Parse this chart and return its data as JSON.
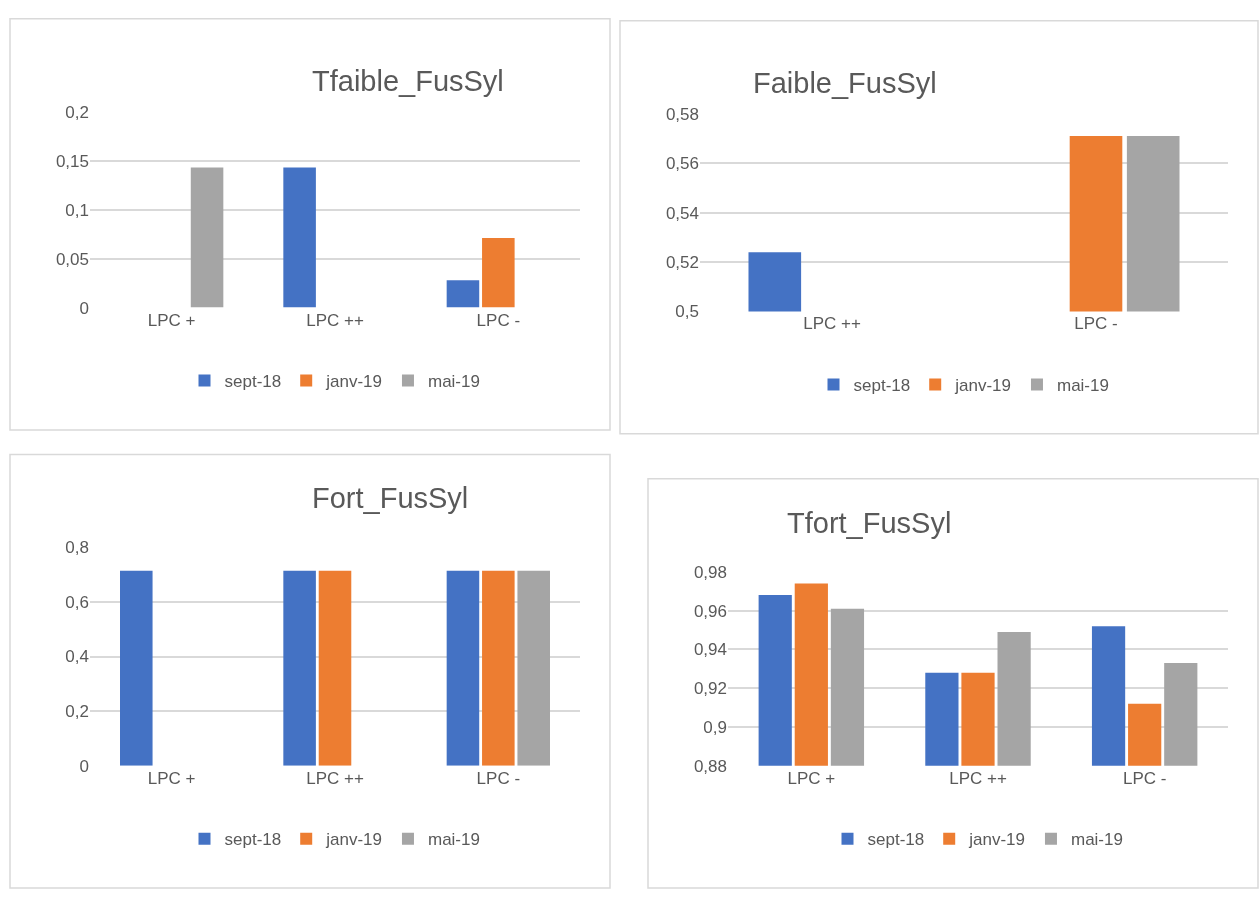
{
  "chart_data": [
    {
      "type": "bar",
      "title": "Tfaible_FusSyl",
      "categories": [
        "LPC +",
        "LPC ++",
        "LPC -"
      ],
      "series": [
        {
          "name": "sept-18",
          "color": "#4472c4",
          "values": [
            null,
            0.143,
            0.028
          ]
        },
        {
          "name": "janv-19",
          "color": "#ed7d31",
          "values": [
            null,
            null,
            0.071
          ]
        },
        {
          "name": "mai-19",
          "color": "#a5a5a5",
          "values": [
            0.143,
            null,
            null
          ]
        }
      ],
      "ylim": [
        0,
        0.2
      ],
      "yticks": [
        0,
        {
          "value": 0.05,
          "label": "0,05"
        },
        {
          "value": 0.1,
          "label": "0,1"
        },
        {
          "value": 0.15,
          "label": "0,15"
        },
        {
          "value": 0.2,
          "label": "0,2"
        }
      ],
      "grid": "y",
      "legend": "bottom"
    },
    {
      "type": "bar",
      "title": "Faible_FusSyl",
      "categories": [
        "LPC ++",
        "LPC -"
      ],
      "series": [
        {
          "name": "sept-18",
          "color": "#4472c4",
          "values": [
            0.524,
            null
          ]
        },
        {
          "name": "janv-19",
          "color": "#ed7d31",
          "values": [
            null,
            0.571
          ]
        },
        {
          "name": "mai-19",
          "color": "#a5a5a5",
          "values": [
            null,
            0.571
          ]
        }
      ],
      "ylim": [
        0.5,
        0.58
      ],
      "yticks": [
        {
          "value": 0.5,
          "label": "0,5"
        },
        {
          "value": 0.52,
          "label": "0,52"
        },
        {
          "value": 0.54,
          "label": "0,54"
        },
        {
          "value": 0.56,
          "label": "0,56"
        },
        {
          "value": 0.58,
          "label": "0,58"
        }
      ],
      "grid": "y",
      "legend": "bottom"
    },
    {
      "type": "bar",
      "title": "Fort_FusSyl",
      "categories": [
        "LPC +",
        "LPC ++",
        "LPC -"
      ],
      "series": [
        {
          "name": "sept-18",
          "color": "#4472c4",
          "values": [
            0.714,
            0.714,
            0.714
          ]
        },
        {
          "name": "janv-19",
          "color": "#ed7d31",
          "values": [
            null,
            0.714,
            0.714
          ]
        },
        {
          "name": "mai-19",
          "color": "#a5a5a5",
          "values": [
            null,
            null,
            0.714
          ]
        }
      ],
      "ylim": [
        0,
        0.8
      ],
      "yticks": [
        0,
        {
          "value": 0.2,
          "label": "0,2"
        },
        {
          "value": 0.4,
          "label": "0,4"
        },
        {
          "value": 0.6,
          "label": "0,6"
        },
        {
          "value": 0.8,
          "label": "0,8"
        }
      ],
      "grid": "y",
      "legend": "bottom"
    },
    {
      "type": "bar",
      "title": "Tfort_FusSyl",
      "categories": [
        "LPC +",
        "LPC ++",
        "LPC -"
      ],
      "series": [
        {
          "name": "sept-18",
          "color": "#4472c4",
          "values": [
            0.968,
            0.928,
            0.952
          ]
        },
        {
          "name": "janv-19",
          "color": "#ed7d31",
          "values": [
            0.974,
            0.928,
            0.912
          ]
        },
        {
          "name": "mai-19",
          "color": "#a5a5a5",
          "values": [
            0.961,
            0.949,
            0.933
          ]
        }
      ],
      "ylim": [
        0.88,
        0.98
      ],
      "yticks": [
        {
          "value": 0.88,
          "label": "0,88"
        },
        {
          "value": 0.9,
          "label": "0,9"
        },
        {
          "value": 0.92,
          "label": "0,92"
        },
        {
          "value": 0.94,
          "label": "0,94"
        },
        {
          "value": 0.96,
          "label": "0,96"
        },
        {
          "value": 0.98,
          "label": "0,98"
        }
      ],
      "grid": "y",
      "legend": "bottom"
    }
  ]
}
